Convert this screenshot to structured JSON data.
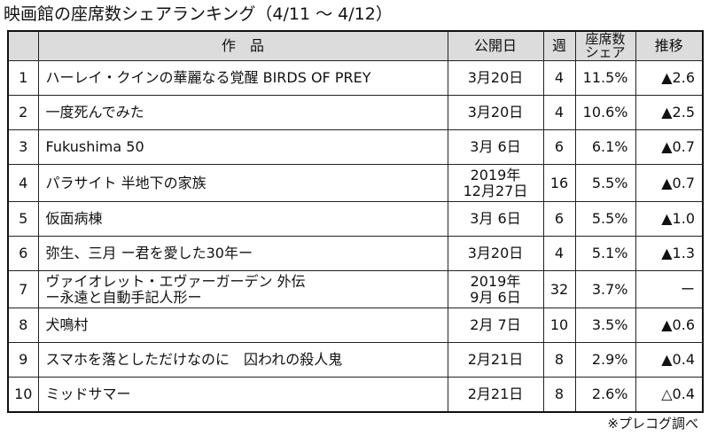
{
  "title": "映画館の座席数シェアランキング（4/11 ～ 4/12）",
  "headers": {
    "rank": "",
    "title": "作　品",
    "release": "公開日",
    "weeks": "週",
    "share_line1": "座席数",
    "share_line2": "シェア",
    "trend": "推移"
  },
  "rows": [
    {
      "rank": "1",
      "title_line1": "ハーレイ・クインの華麗なる覚醒 BIRDS OF PREY",
      "title_line2": "",
      "date_line1": "3月20日",
      "date_line2": "",
      "weeks": "4",
      "share": "11.5%",
      "trend": "▲2.6"
    },
    {
      "rank": "2",
      "title_line1": "一度死んでみた",
      "title_line2": "",
      "date_line1": "3月20日",
      "date_line2": "",
      "weeks": "4",
      "share": "10.6%",
      "trend": "▲2.5"
    },
    {
      "rank": "3",
      "title_line1": "Fukushima 50",
      "title_line2": "",
      "date_line1": "3月 6日",
      "date_line2": "",
      "weeks": "6",
      "share": "6.1%",
      "trend": "▲0.7"
    },
    {
      "rank": "4",
      "title_line1": "パラサイト 半地下の家族",
      "title_line2": "",
      "date_line1": "2019年",
      "date_line2": "12月27日",
      "weeks": "16",
      "share": "5.5%",
      "trend": "▲0.7"
    },
    {
      "rank": "5",
      "title_line1": "仮面病棟",
      "title_line2": "",
      "date_line1": "3月 6日",
      "date_line2": "",
      "weeks": "6",
      "share": "5.5%",
      "trend": "▲1.0"
    },
    {
      "rank": "6",
      "title_line1": "弥生、三月 ー君を愛した30年ー",
      "title_line2": "",
      "date_line1": "3月20日",
      "date_line2": "",
      "weeks": "4",
      "share": "5.1%",
      "trend": "▲1.3"
    },
    {
      "rank": "7",
      "title_line1": "ヴァイオレット・エヴァーガーデン 外伝",
      "title_line2": "ー永遠と自動手記人形ー",
      "date_line1": "2019年",
      "date_line2": "9月 6日",
      "weeks": "32",
      "share": "3.7%",
      "trend": "ー"
    },
    {
      "rank": "8",
      "title_line1": "犬鳴村",
      "title_line2": "",
      "date_line1": "2月 7日",
      "date_line2": "",
      "weeks": "10",
      "share": "3.5%",
      "trend": "▲0.6"
    },
    {
      "rank": "9",
      "title_line1": "スマホを落としただけなのに　囚われの殺人鬼",
      "title_line2": "",
      "date_line1": "2月21日",
      "date_line2": "",
      "weeks": "8",
      "share": "2.9%",
      "trend": "▲0.4"
    },
    {
      "rank": "10",
      "title_line1": "ミッドサマー",
      "title_line2": "",
      "date_line1": "2月21日",
      "date_line2": "",
      "weeks": "8",
      "share": "2.6%",
      "trend": "△0.4"
    }
  ],
  "source": "※プレコグ調べ"
}
